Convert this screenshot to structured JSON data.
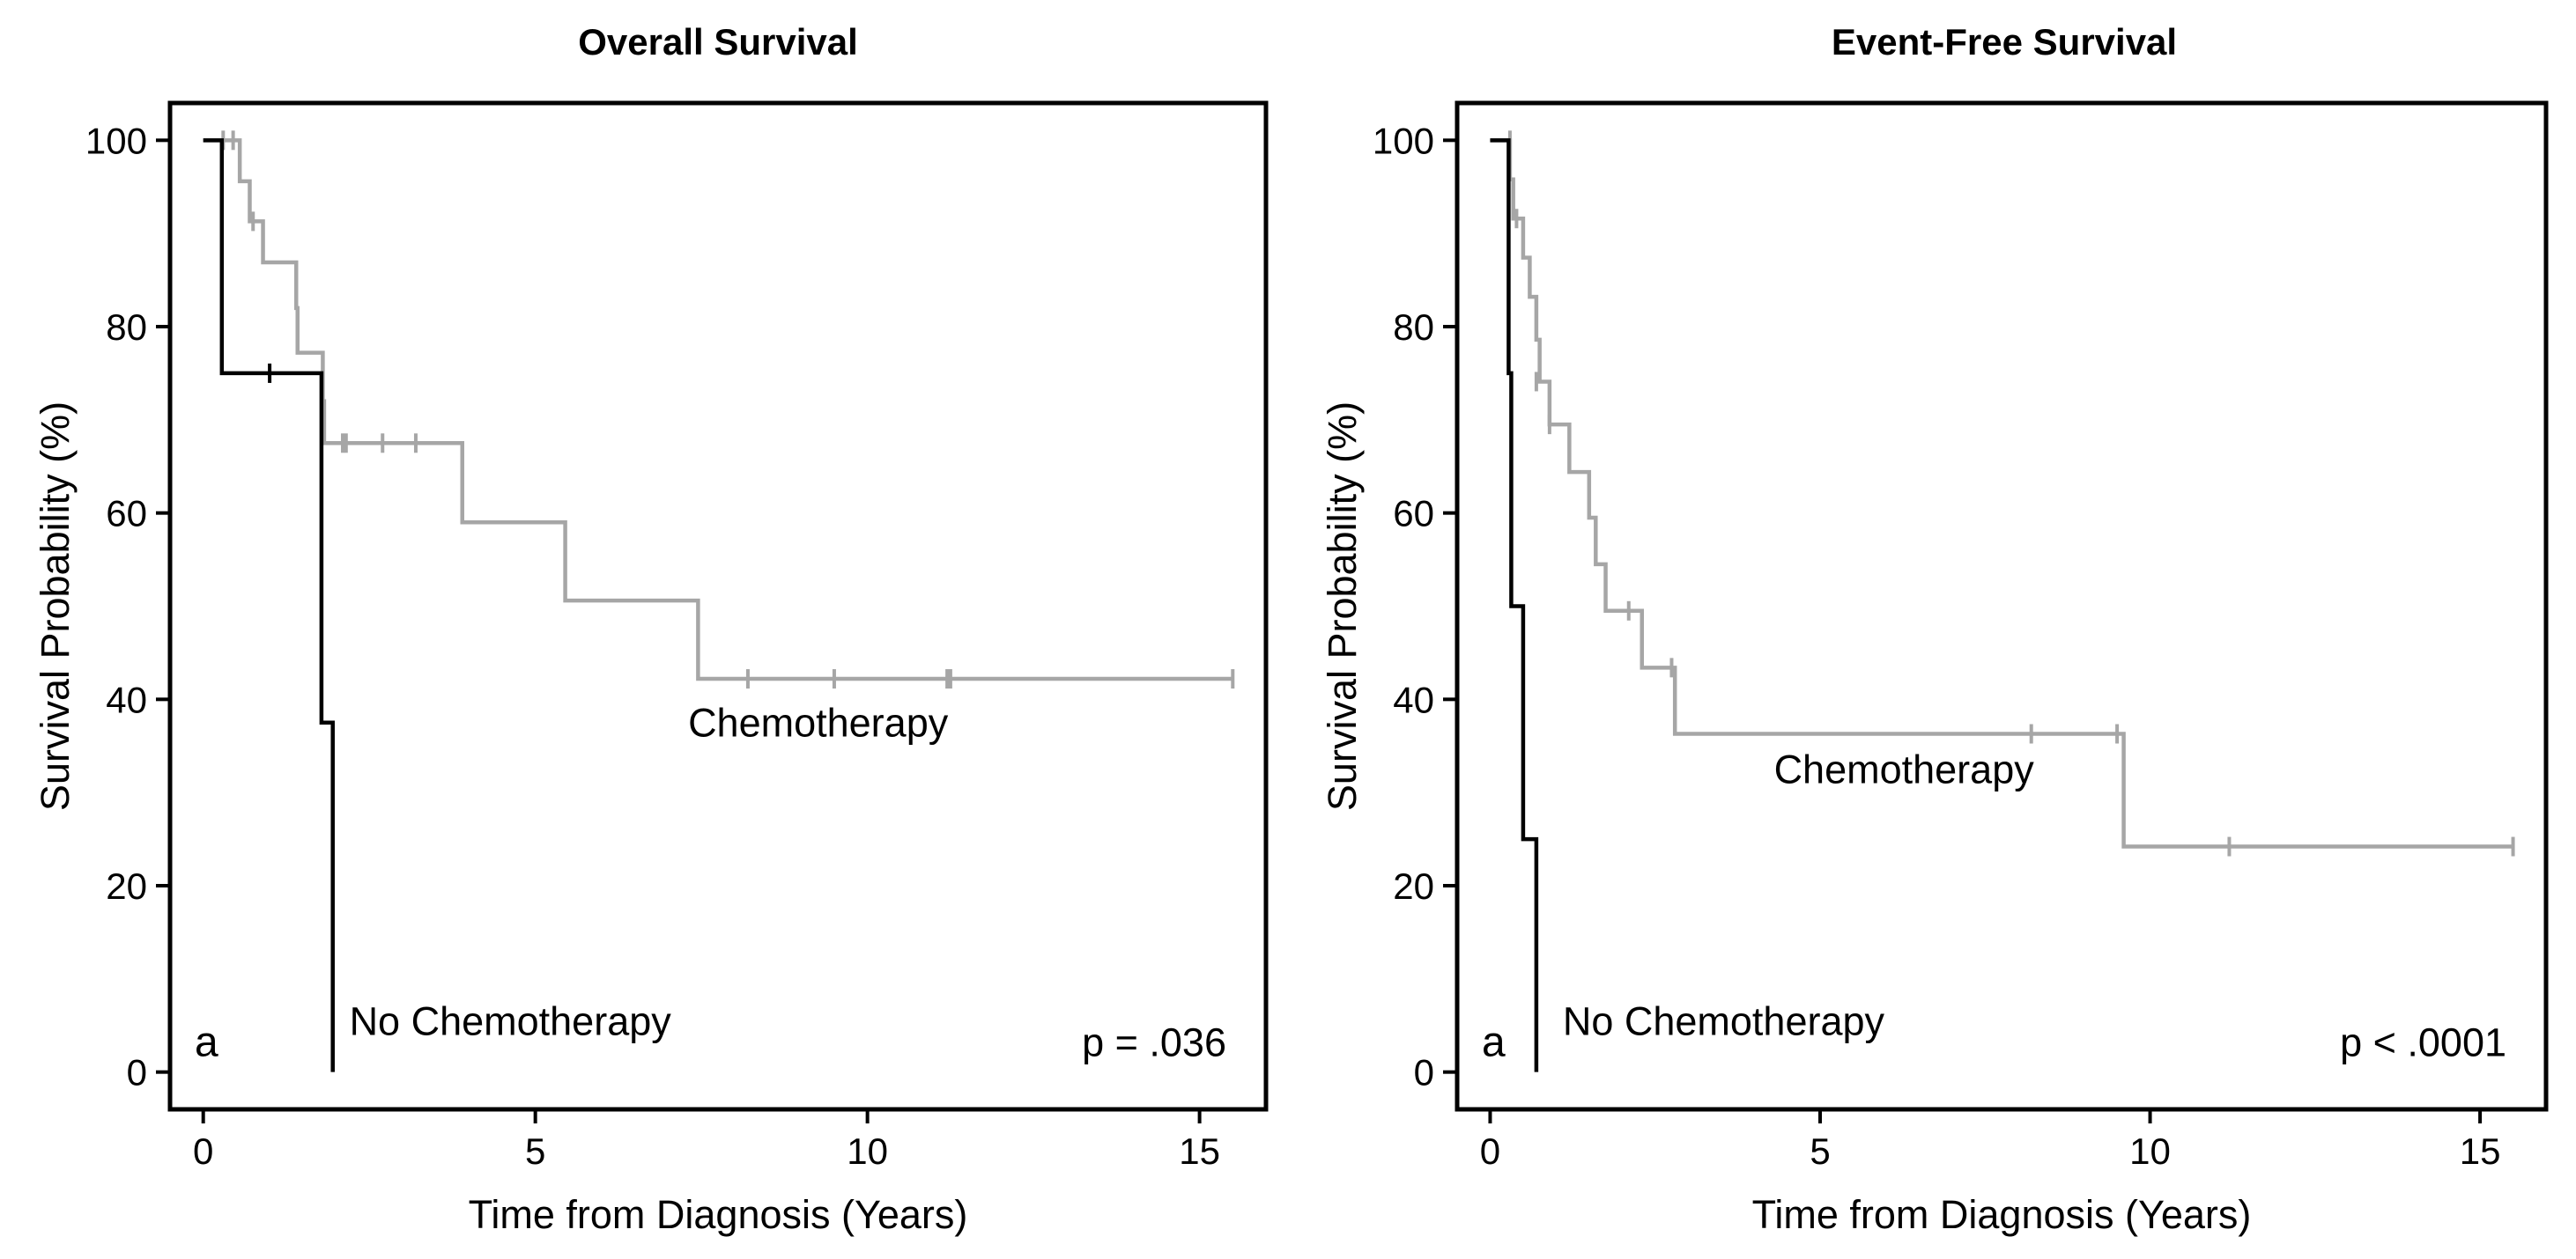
{
  "colors": {
    "chemotherapy": "#a6a6a6",
    "no_chemotherapy": "#000000",
    "axis": "#000000"
  },
  "chart_data": [
    {
      "type": "line",
      "subtype": "kaplan-meier step",
      "title": "Overall Survival",
      "xlabel": "Time from Diagnosis (Years)",
      "ylabel": "Survival Probability (%)",
      "xlim": [
        -0.5,
        16
      ],
      "ylim": [
        -4,
        104
      ],
      "xticks": [
        0,
        5,
        10,
        15
      ],
      "yticks": [
        0,
        20,
        40,
        60,
        80,
        100
      ],
      "panel_letter": "a",
      "p_value": "p = .036",
      "grid": false,
      "series": [
        {
          "name": "Chemotherapy",
          "label": "Chemotherapy",
          "label_at": [
            7.3,
            36
          ],
          "color_key": "chemotherapy",
          "steps": [
            [
              0,
              100
            ],
            [
              0.55,
              95.6
            ],
            [
              0.7,
              91.3
            ],
            [
              0.9,
              86.9
            ],
            [
              1.4,
              82
            ],
            [
              1.42,
              77.2
            ],
            [
              1.8,
              72
            ],
            [
              1.82,
              67.5
            ],
            [
              3.9,
              59
            ],
            [
              5.45,
              50.6
            ],
            [
              7.45,
              42.2
            ],
            [
              15.5,
              42.2
            ]
          ],
          "censored": [
            [
              0.3,
              100
            ],
            [
              0.45,
              100
            ],
            [
              0.75,
              91.3
            ],
            [
              0.9,
              89
            ],
            [
              2.1,
              67.5
            ],
            [
              2.15,
              67.5
            ],
            [
              2.7,
              67.5
            ],
            [
              3.2,
              67.5
            ],
            [
              8.2,
              42.2
            ],
            [
              9.5,
              42.2
            ],
            [
              11.2,
              42.2
            ],
            [
              11.25,
              42.2
            ],
            [
              15.5,
              42.2
            ]
          ]
        },
        {
          "name": "No Chemotherapy",
          "label": "No Chemotherapy",
          "label_at": [
            2.2,
            4
          ],
          "color_key": "no_chemotherapy",
          "steps": [
            [
              0,
              100
            ],
            [
              0.28,
              75
            ],
            [
              1.78,
              37.5
            ],
            [
              1.95,
              0
            ]
          ],
          "censored": [
            [
              1.0,
              75
            ]
          ]
        }
      ]
    },
    {
      "type": "line",
      "subtype": "kaplan-meier step",
      "title": "Event-Free Survival",
      "xlabel": "Time from Diagnosis (Years)",
      "ylabel": "Survival Probability (%)",
      "xlim": [
        -0.5,
        16
      ],
      "ylim": [
        -4,
        104
      ],
      "xticks": [
        0,
        5,
        10,
        15
      ],
      "yticks": [
        0,
        20,
        40,
        60,
        80,
        100
      ],
      "panel_letter": "a",
      "p_value": "p < .0001",
      "grid": false,
      "series": [
        {
          "name": "Chemotherapy",
          "label": "Chemotherapy",
          "label_at": [
            4.3,
            31
          ],
          "color_key": "chemotherapy",
          "steps": [
            [
              0,
              100
            ],
            [
              0.3,
              95.8
            ],
            [
              0.35,
              91.6
            ],
            [
              0.5,
              87.4
            ],
            [
              0.6,
              83.2
            ],
            [
              0.7,
              78.6
            ],
            [
              0.75,
              74.1
            ],
            [
              0.9,
              69.5
            ],
            [
              1.2,
              64.4
            ],
            [
              1.5,
              59.5
            ],
            [
              1.6,
              54.5
            ],
            [
              1.75,
              49.5
            ],
            [
              2.3,
              43.4
            ],
            [
              2.8,
              36.3
            ],
            [
              9.6,
              24.2
            ],
            [
              15.5,
              24.2
            ]
          ],
          "censored": [
            [
              0.3,
              100
            ],
            [
              0.4,
              91.6
            ],
            [
              0.7,
              74.1
            ],
            [
              0.9,
              69.5
            ],
            [
              2.1,
              49.5
            ],
            [
              2.75,
              43.4
            ],
            [
              8.2,
              36.3
            ],
            [
              9.5,
              36.3
            ],
            [
              11.2,
              24.2
            ],
            [
              15.5,
              24.2
            ]
          ]
        },
        {
          "name": "No Chemotherapy",
          "label": "No Chemotherapy",
          "label_at": [
            1.1,
            4
          ],
          "color_key": "no_chemotherapy",
          "steps": [
            [
              0,
              100
            ],
            [
              0.28,
              75
            ],
            [
              0.32,
              50
            ],
            [
              0.5,
              25
            ],
            [
              0.7,
              0
            ]
          ],
          "censored": []
        }
      ]
    }
  ]
}
